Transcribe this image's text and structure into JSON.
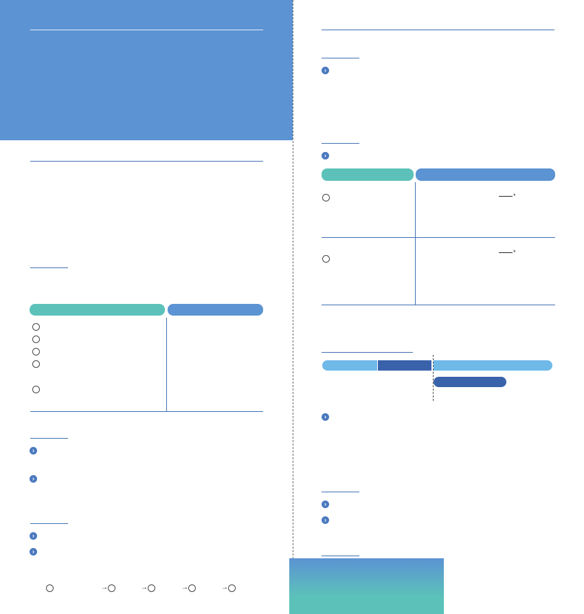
{
  "colors": {
    "header_blue": "#5b93d3",
    "teal": "#5cc2b9",
    "table_blue": "#5b93d3",
    "light_blue": "#6fb9e9",
    "dark_blue": "#3a62ab",
    "rule_blue": "#3f6eb3"
  },
  "icons": {
    "bullet": "chevron-right-icon",
    "marker": "circle-icon",
    "step_arrow": "arrow-right-icon",
    "note_marker": "asterisk-icon"
  },
  "glyphs": {
    "chevron": "›",
    "arrow": "→",
    "asterisk": "*"
  }
}
